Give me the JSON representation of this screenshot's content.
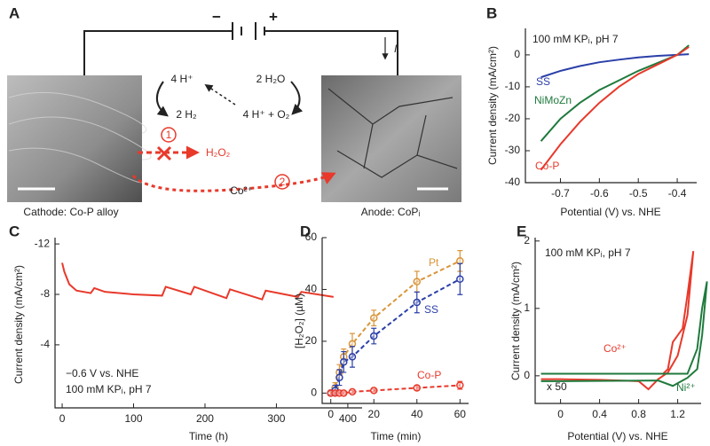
{
  "diagram": {
    "label": "A",
    "minus": "−",
    "plus": "+",
    "current": "I",
    "h_plus": "4 H⁺",
    "h2": "2 H₂",
    "h2o": "2 H₂O",
    "hplus_o2": "4 H⁺ + O₂",
    "step1": "1",
    "h2o2": "H₂O₂",
    "step2": "2",
    "co": "Co²⁺",
    "cathode_label": "Cathode: Co-P alloy",
    "anode_label": "Anode: CoPᵢ"
  },
  "chart_data": [
    {
      "type": "line",
      "label": "B",
      "annotations": [
        "100 mM KPᵢ, pH 7"
      ],
      "x_label": "Potential (V) vs. NHE",
      "y_label": "Current density (mA/cm²)",
      "xlim": [
        -0.79,
        -0.35
      ],
      "xticks": [
        -0.7,
        -0.6,
        -0.5,
        -0.4
      ],
      "ylim": [
        -40,
        8.3
      ],
      "yticks": [
        -40,
        -30,
        -20,
        -10,
        0
      ],
      "x": [
        -0.75,
        -0.7,
        -0.65,
        -0.6,
        -0.55,
        -0.5,
        -0.45,
        -0.4,
        -0.37
      ],
      "series": [
        {
          "name": "SS",
          "color": "#2b3fa8",
          "values": [
            -7,
            -5,
            -3.5,
            -2.3,
            -1.5,
            -0.8,
            -0.3,
            0,
            0.2
          ]
        },
        {
          "name": "NiMoZn",
          "color": "#1f7a3d",
          "values": [
            -27,
            -20,
            -15,
            -11,
            -8,
            -5,
            -2.5,
            0,
            3
          ]
        },
        {
          "name": "Co-P",
          "color": "#e8392b",
          "values": [
            -36,
            -28,
            -21,
            -15,
            -10,
            -6,
            -3,
            0,
            2.5
          ]
        }
      ]
    },
    {
      "type": "line",
      "label": "C",
      "annotations": [
        "−0.6 V vs. NHE",
        "100 mM KPᵢ, pH 7"
      ],
      "x_label": "Time (h)",
      "y_label": "Current density (mA/cm²)",
      "xlim": [
        -10,
        420
      ],
      "xticks": [
        0,
        100,
        200,
        300,
        400
      ],
      "ylim": [
        1,
        -12.5
      ],
      "yticks": [
        -12,
        -8,
        -4
      ],
      "series": [
        {
          "color": "#e8392b",
          "x": [
            0,
            3,
            10,
            20,
            40,
            45,
            60,
            100,
            140,
            145,
            180,
            185,
            230,
            235,
            280,
            285,
            330,
            335,
            380
          ],
          "values": [
            -10.5,
            -9.8,
            -8.8,
            -8.3,
            -8.1,
            -8.5,
            -8.2,
            -8.0,
            -7.9,
            -8.6,
            -8.0,
            -8.6,
            -7.7,
            -8.4,
            -7.6,
            -8.3,
            -7.8,
            -8.2,
            -7.8
          ]
        }
      ]
    },
    {
      "type": "line",
      "label": "D",
      "annotations": [],
      "x_label": "Time (min)",
      "y_label": "[H₂O₂] (µM)",
      "xlim": [
        -4,
        64
      ],
      "xticks": [
        0,
        20,
        40,
        60
      ],
      "ylim": [
        -4,
        60
      ],
      "yticks": [
        0,
        20,
        40,
        60
      ],
      "x": [
        0,
        2,
        4,
        6,
        10,
        20,
        40,
        60
      ],
      "dashed": true,
      "markers": true,
      "series": [
        {
          "name": "Pt",
          "color": "#d9953a",
          "values": [
            0,
            2,
            8,
            14,
            19,
            29,
            43,
            51
          ],
          "errors": [
            1,
            2,
            3,
            3,
            4,
            3,
            4,
            4
          ]
        },
        {
          "name": "SS",
          "color": "#2b3fa8",
          "values": [
            0,
            1,
            6,
            12,
            14,
            22,
            35,
            44
          ],
          "errors": [
            1,
            2,
            3,
            4,
            4,
            3,
            4,
            6
          ]
        },
        {
          "name": "Co-P",
          "color": "#e8392b",
          "values": [
            0,
            0,
            0,
            0,
            0.5,
            1,
            2,
            3
          ],
          "errors": [
            0.5,
            0.5,
            0.5,
            0.5,
            0.5,
            0.5,
            0.8,
            1.5
          ]
        }
      ]
    },
    {
      "type": "line",
      "label": "E",
      "annotations": [
        "100 mM KPᵢ, pH 7",
        "x 50"
      ],
      "x_label": "Potential (V) vs. NHE",
      "y_label": "Current density (mA/cm²)",
      "xlim": [
        -0.26,
        1.44
      ],
      "xticks": [
        0,
        0.4,
        0.8,
        1.2
      ],
      "ylim": [
        -0.41,
        2.05
      ],
      "yticks": [
        0,
        1,
        2
      ],
      "series": [
        {
          "name": "Co²⁺",
          "color": "#e8392b",
          "x": [
            -0.2,
            0,
            0.4,
            0.8,
            1.05,
            1.1,
            1.15,
            1.2,
            1.25,
            1.3,
            1.36,
            1.3,
            1.2,
            1.1,
            1.0,
            0.9,
            0.8,
            0.4,
            0,
            -0.2
          ],
          "values": [
            0.03,
            0.03,
            0.03,
            0.03,
            0.03,
            0.1,
            0.5,
            0.6,
            0.7,
            1.2,
            1.85,
            0.9,
            0.3,
            0.05,
            -0.05,
            -0.2,
            -0.08,
            -0.06,
            -0.05,
            -0.05
          ]
        },
        {
          "name": "Ni²⁺",
          "color": "#1f7a3d",
          "x": [
            -0.2,
            0,
            0.4,
            0.8,
            1.2,
            1.3,
            1.4,
            1.45,
            1.5,
            1.45,
            1.4,
            1.3,
            1.15,
            1.0,
            0,
            -0.2
          ],
          "values": [
            0.03,
            0.03,
            0.03,
            0.03,
            0.03,
            0.03,
            0.4,
            1.0,
            1.4,
            0.6,
            0.1,
            -0.03,
            -0.15,
            -0.07,
            -0.08,
            -0.08
          ]
        }
      ]
    }
  ]
}
